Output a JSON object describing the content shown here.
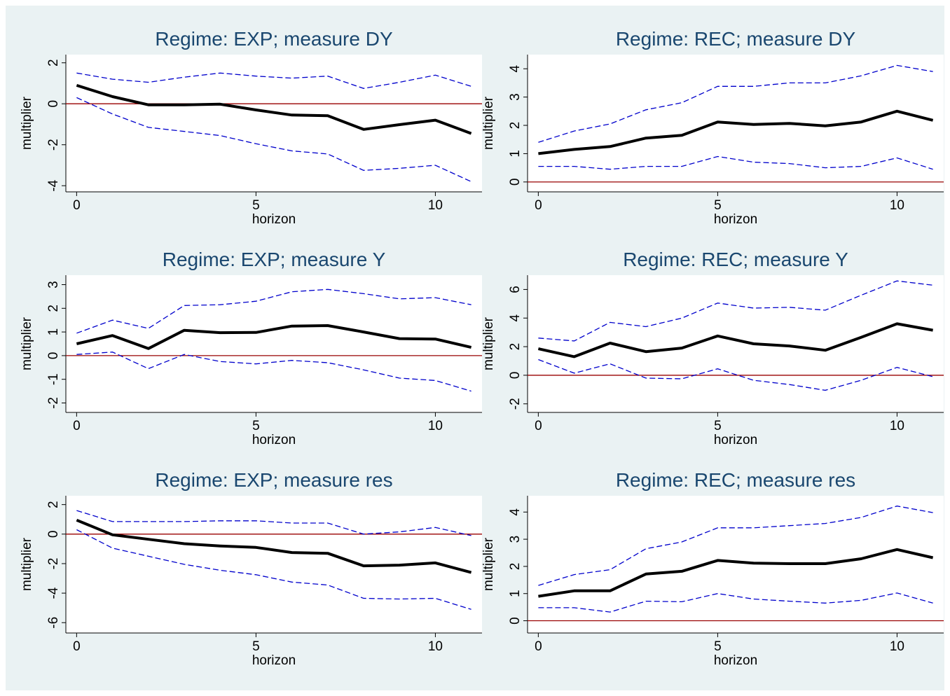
{
  "colors": {
    "background": "#eaf2f3",
    "plot_area": "#ffffff",
    "estimate": "#000000",
    "bands": "#0000cc",
    "zero_line": "#990000",
    "title": "#1a476f"
  },
  "chart_data": [
    {
      "type": "line",
      "title": "Regime: EXP; measure DY",
      "xlabel": "horizon",
      "ylabel": "multiplier",
      "xlim": [
        -0.3,
        11.3
      ],
      "ylim": [
        -4.3,
        2.4
      ],
      "xticks": [
        0,
        5,
        10
      ],
      "yticks": [
        -4,
        -2,
        0,
        2
      ],
      "x": [
        0,
        1,
        2,
        3,
        4,
        5,
        6,
        7,
        8,
        9,
        10,
        11
      ],
      "series": [
        {
          "role": "estimate",
          "values": [
            0.9,
            0.35,
            -0.05,
            -0.05,
            -0.02,
            -0.3,
            -0.55,
            -0.58,
            -1.25,
            -1.02,
            -0.8,
            -1.45
          ]
        },
        {
          "role": "upper",
          "values": [
            1.5,
            1.2,
            1.05,
            1.3,
            1.5,
            1.35,
            1.25,
            1.35,
            0.75,
            1.05,
            1.4,
            0.85
          ]
        },
        {
          "role": "lower",
          "values": [
            0.3,
            -0.5,
            -1.15,
            -1.35,
            -1.55,
            -1.95,
            -2.3,
            -2.45,
            -3.25,
            -3.15,
            -3.0,
            -3.8
          ]
        }
      ]
    },
    {
      "type": "line",
      "title": "Regime: REC; measure DY",
      "xlabel": "horizon",
      "ylabel": "multiplier",
      "xlim": [
        -0.3,
        11.3
      ],
      "ylim": [
        -0.35,
        4.5
      ],
      "xticks": [
        0,
        5,
        10
      ],
      "yticks": [
        0,
        1,
        2,
        3,
        4
      ],
      "x": [
        0,
        1,
        2,
        3,
        4,
        5,
        6,
        7,
        8,
        9,
        10,
        11
      ],
      "series": [
        {
          "role": "estimate",
          "values": [
            1.0,
            1.15,
            1.25,
            1.55,
            1.65,
            2.12,
            2.03,
            2.07,
            1.98,
            2.12,
            2.5,
            2.18
          ]
        },
        {
          "role": "upper",
          "values": [
            1.4,
            1.8,
            2.05,
            2.55,
            2.8,
            3.38,
            3.38,
            3.5,
            3.5,
            3.75,
            4.12,
            3.9
          ]
        },
        {
          "role": "lower",
          "values": [
            0.55,
            0.55,
            0.45,
            0.55,
            0.55,
            0.9,
            0.7,
            0.65,
            0.5,
            0.55,
            0.85,
            0.45
          ]
        }
      ]
    },
    {
      "type": "line",
      "title": "Regime: EXP; measure Y",
      "xlabel": "horizon",
      "ylabel": "multiplier",
      "xlim": [
        -0.3,
        11.3
      ],
      "ylim": [
        -2.4,
        3.4
      ],
      "xticks": [
        0,
        5,
        10
      ],
      "yticks": [
        -2,
        -1,
        0,
        1,
        2,
        3
      ],
      "x": [
        0,
        1,
        2,
        3,
        4,
        5,
        6,
        7,
        8,
        9,
        10,
        11
      ],
      "series": [
        {
          "role": "estimate",
          "values": [
            0.5,
            0.85,
            0.3,
            1.07,
            0.97,
            0.98,
            1.25,
            1.27,
            1.0,
            0.72,
            0.7,
            0.35
          ]
        },
        {
          "role": "upper",
          "values": [
            0.95,
            1.5,
            1.15,
            2.12,
            2.15,
            2.3,
            2.7,
            2.8,
            2.62,
            2.4,
            2.45,
            2.15
          ]
        },
        {
          "role": "lower",
          "values": [
            0.05,
            0.15,
            -0.55,
            0.05,
            -0.25,
            -0.35,
            -0.2,
            -0.3,
            -0.6,
            -0.95,
            -1.05,
            -1.5
          ]
        }
      ]
    },
    {
      "type": "line",
      "title": "Regime: REC; measure Y",
      "xlabel": "horizon",
      "ylabel": "multiplier",
      "xlim": [
        -0.3,
        11.3
      ],
      "ylim": [
        -2.6,
        7.0
      ],
      "xticks": [
        0,
        5,
        10
      ],
      "yticks": [
        -2,
        0,
        2,
        4,
        6
      ],
      "x": [
        0,
        1,
        2,
        3,
        4,
        5,
        6,
        7,
        8,
        9,
        10,
        11
      ],
      "series": [
        {
          "role": "estimate",
          "values": [
            1.85,
            1.3,
            2.25,
            1.65,
            1.9,
            2.75,
            2.2,
            2.05,
            1.75,
            2.65,
            3.6,
            3.15
          ]
        },
        {
          "role": "upper",
          "values": [
            2.6,
            2.4,
            3.7,
            3.4,
            4.0,
            5.05,
            4.7,
            4.75,
            4.55,
            5.6,
            6.6,
            6.3
          ]
        },
        {
          "role": "lower",
          "values": [
            1.1,
            0.15,
            0.8,
            -0.2,
            -0.25,
            0.45,
            -0.35,
            -0.65,
            -1.05,
            -0.35,
            0.55,
            -0.1
          ]
        }
      ]
    },
    {
      "type": "line",
      "title": "Regime: EXP; measure res",
      "xlabel": "horizon",
      "ylabel": "multiplier",
      "xlim": [
        -0.3,
        11.3
      ],
      "ylim": [
        -6.7,
        2.6
      ],
      "xticks": [
        0,
        5,
        10
      ],
      "yticks": [
        -6,
        -4,
        -2,
        0,
        2
      ],
      "x": [
        0,
        1,
        2,
        3,
        4,
        5,
        6,
        7,
        8,
        9,
        10,
        11
      ],
      "series": [
        {
          "role": "estimate",
          "values": [
            0.95,
            -0.05,
            -0.35,
            -0.65,
            -0.8,
            -0.9,
            -1.25,
            -1.3,
            -2.15,
            -2.1,
            -1.95,
            -2.6
          ]
        },
        {
          "role": "upper",
          "values": [
            1.6,
            0.85,
            0.85,
            0.85,
            0.9,
            0.9,
            0.75,
            0.75,
            0.0,
            0.15,
            0.45,
            -0.1
          ]
        },
        {
          "role": "lower",
          "values": [
            0.3,
            -0.95,
            -1.5,
            -2.05,
            -2.45,
            -2.75,
            -3.25,
            -3.45,
            -4.35,
            -4.4,
            -4.35,
            -5.1
          ]
        }
      ]
    },
    {
      "type": "line",
      "title": "Regime: REC; measure res",
      "xlabel": "horizon",
      "ylabel": "multiplier",
      "xlim": [
        -0.3,
        11.3
      ],
      "ylim": [
        -0.45,
        4.6
      ],
      "xticks": [
        0,
        5,
        10
      ],
      "yticks": [
        0,
        1,
        2,
        3,
        4
      ],
      "x": [
        0,
        1,
        2,
        3,
        4,
        5,
        6,
        7,
        8,
        9,
        10,
        11
      ],
      "series": [
        {
          "role": "estimate",
          "values": [
            0.9,
            1.1,
            1.1,
            1.72,
            1.82,
            2.22,
            2.12,
            2.1,
            2.1,
            2.28,
            2.62,
            2.32
          ]
        },
        {
          "role": "upper",
          "values": [
            1.3,
            1.7,
            1.88,
            2.65,
            2.9,
            3.42,
            3.42,
            3.5,
            3.58,
            3.8,
            4.22,
            3.98
          ]
        },
        {
          "role": "lower",
          "values": [
            0.48,
            0.48,
            0.32,
            0.72,
            0.7,
            1.0,
            0.8,
            0.72,
            0.65,
            0.75,
            1.02,
            0.65
          ]
        }
      ]
    }
  ]
}
